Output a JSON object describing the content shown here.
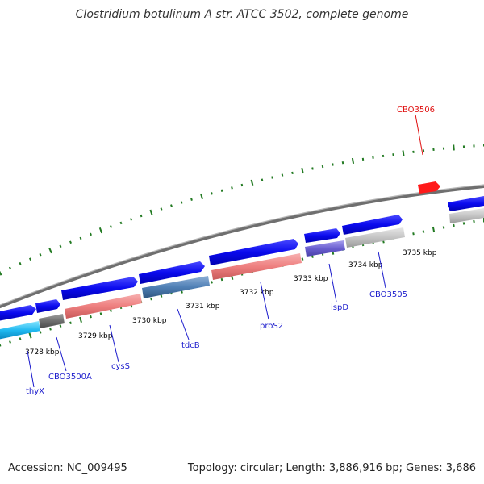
{
  "title": "Clostridium botulinum A str. ATCC 3502, complete genome",
  "footer": {
    "accession": "Accession: NC_009495",
    "summary": "Topology: circular; Length: 3,886,916 bp; Genes: 3,686"
  },
  "colors": {
    "cds_arrow": "#0a0aee",
    "backbone": "#8c8c8c",
    "tick_dot": "#227a22",
    "label_normal": "#1a1acc",
    "label_highlight": "#e01010"
  },
  "ticks": [
    {
      "label": "3728 kbp"
    },
    {
      "label": "3729 kbp"
    },
    {
      "label": "3730 kbp"
    },
    {
      "label": "3731 kbp"
    },
    {
      "label": "3732 kbp"
    },
    {
      "label": "3733 kbp"
    },
    {
      "label": "3734 kbp"
    },
    {
      "label": "3735 kbp"
    }
  ],
  "genes": [
    {
      "name": "thyX",
      "color": "blue"
    },
    {
      "name": "CBO3500A",
      "color": "blue"
    },
    {
      "name": "cysS",
      "color": "blue"
    },
    {
      "name": "tdcB",
      "color": "blue"
    },
    {
      "name": "proS2",
      "color": "blue"
    },
    {
      "name": "ispD",
      "color": "blue"
    },
    {
      "name": "CBO3505",
      "color": "blue"
    },
    {
      "name": "CBO3506",
      "color": "red"
    }
  ]
}
